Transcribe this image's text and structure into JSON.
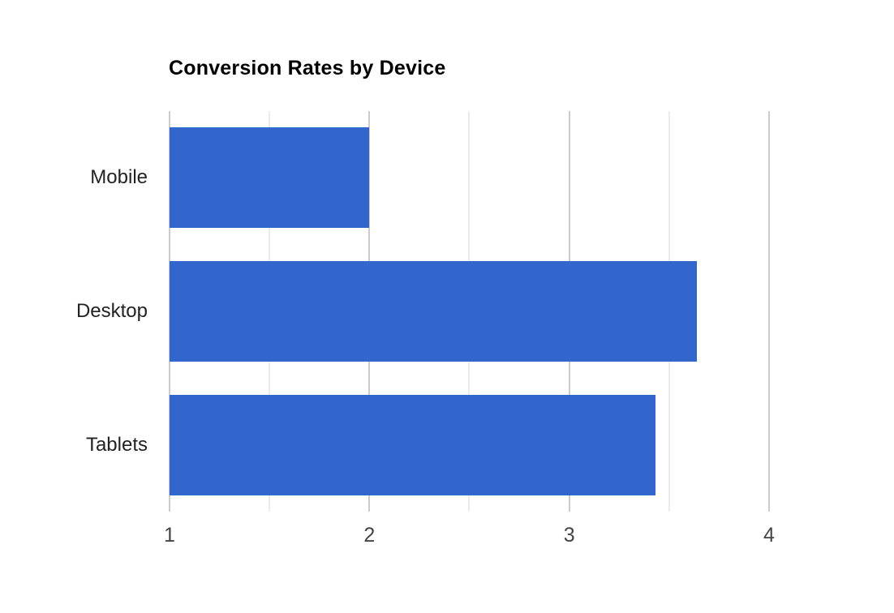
{
  "chart": {
    "title": "Conversion Rates by Device"
  },
  "chart_data": {
    "type": "bar",
    "orientation": "horizontal",
    "title": "Conversion Rates by Device",
    "categories": [
      "Mobile",
      "Desktop",
      "Tablets"
    ],
    "values": [
      2.0,
      3.64,
      3.43
    ],
    "xlabel": "",
    "ylabel": "",
    "bar_baseline": 1,
    "axis_min": 1,
    "axis_max": 4,
    "x_ticks": [
      1,
      2,
      3,
      4
    ],
    "minor_ticks": [
      1.5,
      2.5,
      3.5
    ],
    "grid": true,
    "legend": "none",
    "colors": {
      "bar": "#3366CC",
      "major_gridline": "#CCCCCC",
      "minor_gridline": "#EBEBEB",
      "title_text": "#000000",
      "category_text": "#222222",
      "tick_text": "#444444",
      "background": "#FFFFFF"
    }
  }
}
